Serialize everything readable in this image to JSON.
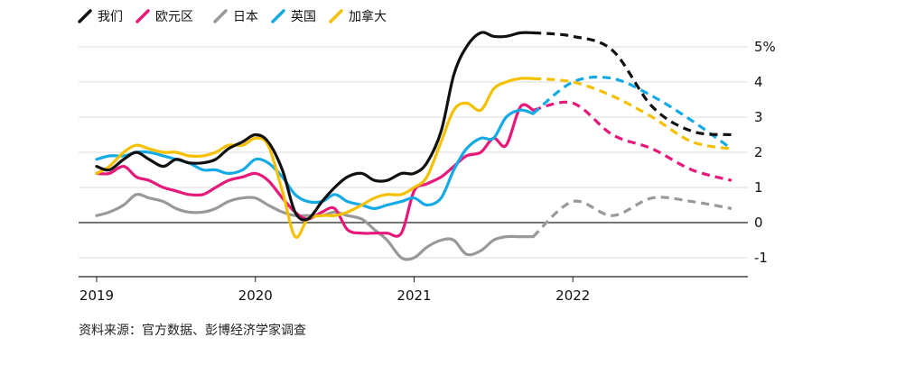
{
  "chart_data": {
    "type": "line",
    "title": "",
    "xlabel": "",
    "ylabel": "",
    "y_unit": "%",
    "ylim": [
      -1.6,
      5.3
    ],
    "y_ticks": [
      5,
      4,
      3,
      2,
      1,
      0,
      -1
    ],
    "y_tick_labels": [
      "5%",
      "4",
      "3",
      "2",
      "1",
      "0",
      "-1"
    ],
    "x_range": [
      2019.0,
      2023.0
    ],
    "x_ticks": [
      2019,
      2020,
      2021,
      2022
    ],
    "x_tick_labels": [
      "2019",
      "2020",
      "2021",
      "2022"
    ],
    "grid": true,
    "legend_position": "top-left",
    "forecast_start": 2021.75,
    "series": [
      {
        "name": "我们",
        "color": "#111111",
        "x": [
          2019.0,
          2019.08,
          2019.17,
          2019.25,
          2019.33,
          2019.42,
          2019.5,
          2019.58,
          2019.67,
          2019.75,
          2019.83,
          2019.92,
          2020.0,
          2020.08,
          2020.17,
          2020.25,
          2020.33,
          2020.42,
          2020.5,
          2020.58,
          2020.67,
          2020.75,
          2020.83,
          2020.92,
          2021.0,
          2021.08,
          2021.17,
          2021.25,
          2021.33,
          2021.42,
          2021.5,
          2021.58,
          2021.67,
          2021.75,
          2022.0,
          2022.25,
          2022.5,
          2022.75,
          2023.0
        ],
        "y": [
          1.6,
          1.5,
          1.8,
          2.0,
          1.8,
          1.6,
          1.8,
          1.7,
          1.7,
          1.8,
          2.1,
          2.3,
          2.5,
          2.3,
          1.5,
          0.3,
          0.1,
          0.6,
          1.0,
          1.3,
          1.4,
          1.2,
          1.2,
          1.4,
          1.4,
          1.7,
          2.6,
          4.2,
          5.0,
          5.4,
          5.3,
          5.3,
          5.4,
          5.4,
          5.3,
          4.9,
          3.3,
          2.6,
          2.5
        ]
      },
      {
        "name": "欧元区",
        "color": "#e6197a",
        "x": [
          2019.0,
          2019.08,
          2019.17,
          2019.25,
          2019.33,
          2019.42,
          2019.5,
          2019.58,
          2019.67,
          2019.75,
          2019.83,
          2019.92,
          2020.0,
          2020.08,
          2020.17,
          2020.25,
          2020.33,
          2020.42,
          2020.5,
          2020.58,
          2020.67,
          2020.75,
          2020.83,
          2020.92,
          2021.0,
          2021.08,
          2021.17,
          2021.25,
          2021.33,
          2021.42,
          2021.5,
          2021.58,
          2021.67,
          2021.75,
          2022.0,
          2022.25,
          2022.5,
          2022.75,
          2023.0
        ],
        "y": [
          1.4,
          1.4,
          1.6,
          1.3,
          1.2,
          1.0,
          0.9,
          0.8,
          0.8,
          1.0,
          1.2,
          1.3,
          1.4,
          1.2,
          0.7,
          0.3,
          0.1,
          0.3,
          0.4,
          -0.2,
          -0.3,
          -0.3,
          -0.3,
          -0.3,
          0.9,
          1.1,
          1.3,
          1.6,
          1.9,
          2.0,
          2.4,
          2.2,
          3.3,
          3.2,
          3.4,
          2.5,
          2.1,
          1.5,
          1.2
        ]
      },
      {
        "name": "日本",
        "color": "#999999",
        "x": [
          2019.0,
          2019.08,
          2019.17,
          2019.25,
          2019.33,
          2019.42,
          2019.5,
          2019.58,
          2019.67,
          2019.75,
          2019.83,
          2019.92,
          2020.0,
          2020.08,
          2020.17,
          2020.25,
          2020.33,
          2020.42,
          2020.5,
          2020.58,
          2020.67,
          2020.75,
          2020.83,
          2020.92,
          2021.0,
          2021.08,
          2021.17,
          2021.25,
          2021.33,
          2021.42,
          2021.5,
          2021.58,
          2021.67,
          2021.75,
          2022.0,
          2022.25,
          2022.5,
          2022.75,
          2023.0
        ],
        "y": [
          0.2,
          0.3,
          0.5,
          0.8,
          0.7,
          0.6,
          0.4,
          0.3,
          0.3,
          0.4,
          0.6,
          0.7,
          0.7,
          0.5,
          0.3,
          0.2,
          0.2,
          0.2,
          0.3,
          0.2,
          0.1,
          -0.2,
          -0.5,
          -1.0,
          -1.0,
          -0.7,
          -0.5,
          -0.5,
          -0.9,
          -0.8,
          -0.5,
          -0.4,
          -0.4,
          -0.4,
          0.6,
          0.2,
          0.7,
          0.6,
          0.4
        ]
      },
      {
        "name": "英国",
        "color": "#14aae6",
        "x": [
          2019.0,
          2019.08,
          2019.17,
          2019.25,
          2019.33,
          2019.42,
          2019.5,
          2019.58,
          2019.67,
          2019.75,
          2019.83,
          2019.92,
          2020.0,
          2020.08,
          2020.17,
          2020.25,
          2020.33,
          2020.42,
          2020.5,
          2020.58,
          2020.67,
          2020.75,
          2020.83,
          2020.92,
          2021.0,
          2021.08,
          2021.17,
          2021.25,
          2021.33,
          2021.42,
          2021.5,
          2021.58,
          2021.67,
          2021.75,
          2022.0,
          2022.25,
          2022.5,
          2022.75,
          2023.0
        ],
        "y": [
          1.8,
          1.9,
          1.9,
          2.0,
          2.0,
          1.9,
          1.8,
          1.7,
          1.5,
          1.5,
          1.4,
          1.5,
          1.8,
          1.7,
          1.3,
          0.8,
          0.6,
          0.6,
          0.8,
          0.6,
          0.5,
          0.4,
          0.5,
          0.6,
          0.7,
          0.5,
          0.7,
          1.5,
          2.1,
          2.4,
          2.4,
          3.0,
          3.2,
          3.1,
          4.0,
          4.1,
          3.6,
          2.9,
          2.1
        ]
      },
      {
        "name": "加拿大",
        "color": "#f5c000",
        "x": [
          2019.0,
          2019.08,
          2019.17,
          2019.25,
          2019.33,
          2019.42,
          2019.5,
          2019.58,
          2019.67,
          2019.75,
          2019.83,
          2019.92,
          2020.0,
          2020.08,
          2020.17,
          2020.25,
          2020.33,
          2020.42,
          2020.5,
          2020.58,
          2020.67,
          2020.75,
          2020.83,
          2020.92,
          2021.0,
          2021.08,
          2021.17,
          2021.25,
          2021.33,
          2021.42,
          2021.5,
          2021.58,
          2021.67,
          2021.75,
          2022.0,
          2022.25,
          2022.5,
          2022.75,
          2023.0
        ],
        "y": [
          1.4,
          1.6,
          2.0,
          2.2,
          2.1,
          2.0,
          2.0,
          1.9,
          1.9,
          2.0,
          2.2,
          2.2,
          2.4,
          2.2,
          0.9,
          -0.4,
          0.1,
          0.2,
          0.2,
          0.3,
          0.5,
          0.7,
          0.8,
          0.8,
          1.0,
          1.3,
          2.3,
          3.2,
          3.4,
          3.2,
          3.8,
          4.0,
          4.1,
          4.1,
          4.0,
          3.6,
          3.0,
          2.3,
          2.1
        ]
      }
    ]
  },
  "source_note": "资料来源：官方数据、彭博经济学家调查"
}
